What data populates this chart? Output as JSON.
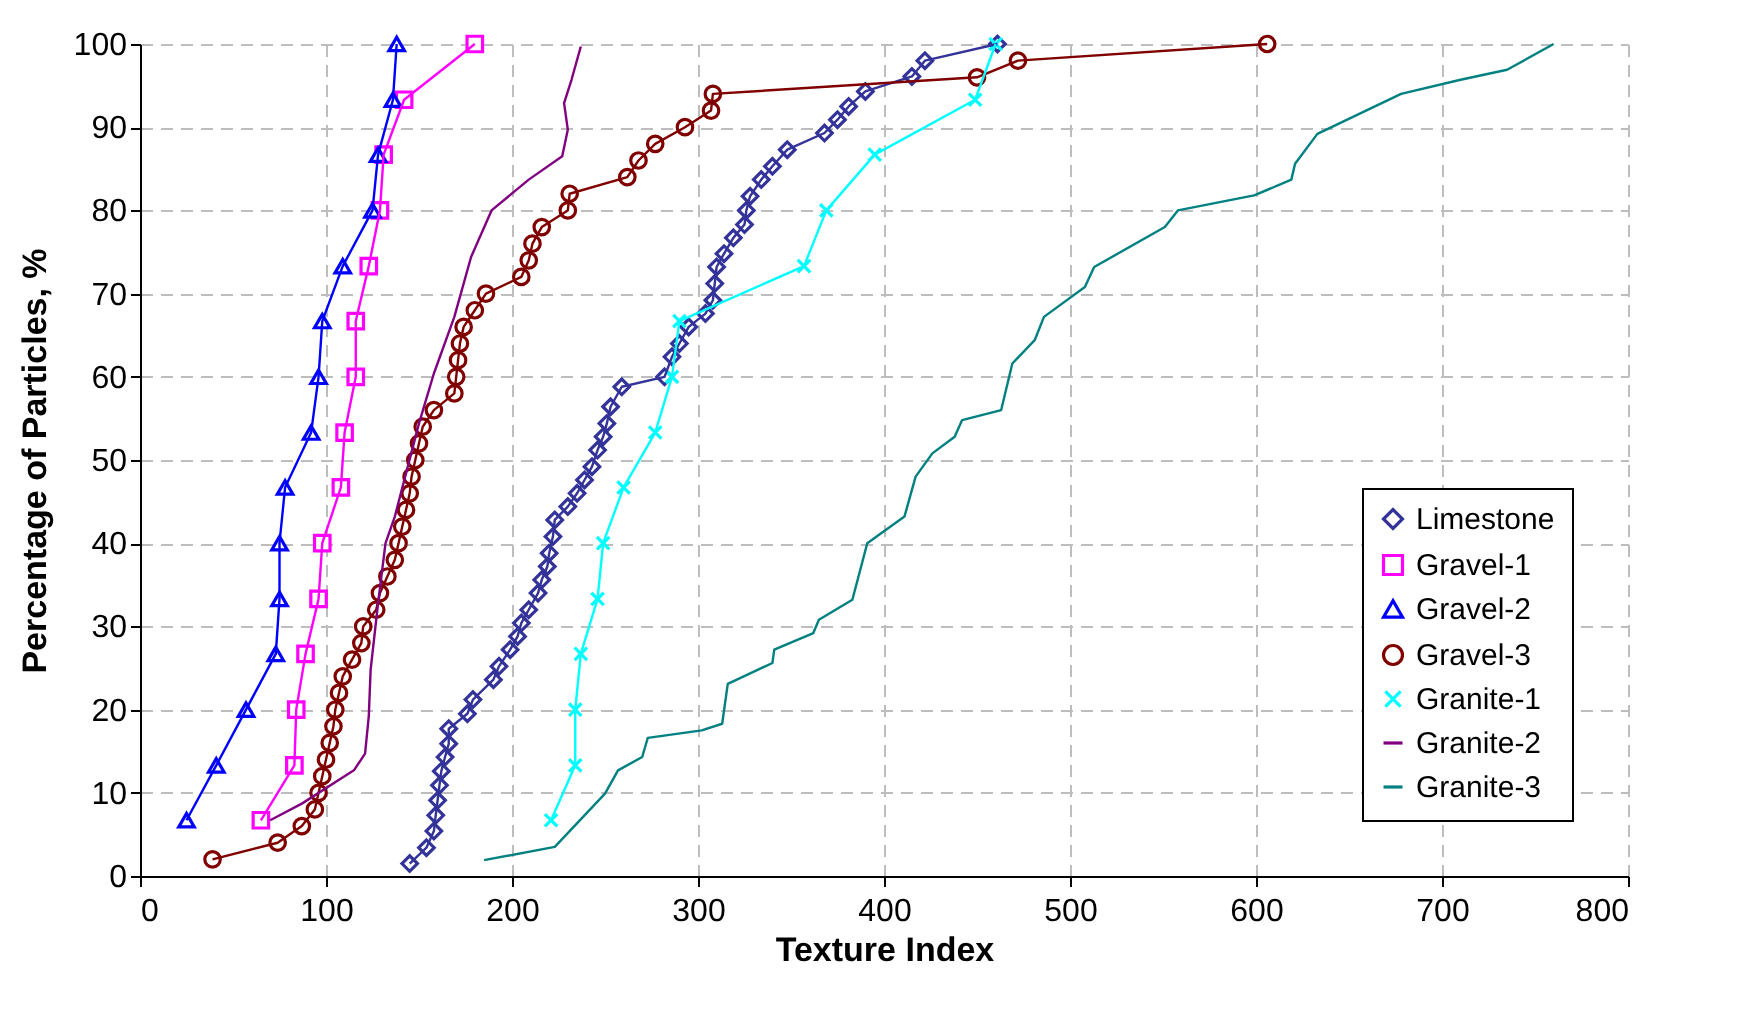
{
  "chart_data": {
    "type": "line",
    "xlabel": "Texture Index",
    "ylabel": "Percentage of Particles, %",
    "xlim": [
      0,
      800
    ],
    "xticks": [
      0,
      100,
      200,
      300,
      400,
      500,
      600,
      700,
      800
    ],
    "ylim": [
      0,
      100
    ],
    "yticks": [
      0,
      10,
      20,
      30,
      40,
      50,
      60,
      70,
      80,
      90,
      100
    ],
    "grid": true,
    "legend": "bottom right",
    "line_style": "solid",
    "series": [
      {
        "name": "Limestone",
        "color": "#333399",
        "marker": "diamond",
        "x": [
          145,
          154,
          158,
          159,
          160,
          161,
          162,
          164,
          166,
          166,
          176,
          179,
          190,
          193,
          199,
          203,
          205,
          209,
          214,
          216,
          219,
          220,
          222,
          223,
          230,
          235,
          239,
          243,
          246,
          249,
          251,
          253,
          259,
          282,
          286,
          290,
          295,
          304,
          308,
          309,
          310,
          314,
          319,
          325,
          326,
          328,
          334,
          340,
          348,
          368,
          375,
          381,
          390,
          415,
          422,
          461
        ],
        "values": [
          1.5,
          3.4,
          5.4,
          7.3,
          9.1,
          10.9,
          12.6,
          14.3,
          15.9,
          17.7,
          19.5,
          21.2,
          23.6,
          25.2,
          27.2,
          28.8,
          30.4,
          32,
          34,
          35.6,
          37.2,
          38.8,
          40.8,
          42.8,
          44.4,
          46,
          47.6,
          49.2,
          51.2,
          52.8,
          54.4,
          56.4,
          58.8,
          60,
          62.4,
          64,
          66,
          67.6,
          69.2,
          71.2,
          73.2,
          74.8,
          76.7,
          78.3,
          80,
          81.7,
          83.7,
          85.3,
          87.3,
          89.3,
          90.9,
          92.5,
          94.3,
          96.1,
          98,
          100
        ]
      },
      {
        "name": "Gravel-1",
        "color": "#ff00ff",
        "marker": "square",
        "x": [
          65,
          83,
          84,
          89,
          96,
          98,
          108,
          110,
          116,
          116,
          123,
          129,
          131,
          142,
          180
        ],
        "values": [
          6.7,
          13.3,
          20,
          26.7,
          33.3,
          40,
          46.7,
          53.3,
          60,
          66.7,
          73.3,
          80,
          86.7,
          93.3,
          100
        ]
      },
      {
        "name": "Gravel-2",
        "color": "#0000ff",
        "marker": "triangle",
        "x": [
          25,
          41,
          57,
          73,
          75,
          75,
          78,
          92,
          96,
          98,
          109,
          125,
          128,
          136,
          138
        ],
        "values": [
          6.7,
          13.3,
          20,
          26.7,
          33.3,
          40,
          46.7,
          53.3,
          60,
          66.7,
          73.3,
          80,
          86.7,
          93.3,
          100
        ]
      },
      {
        "name": "Gravel-3",
        "color": "#800000",
        "marker": "circle",
        "x": [
          39,
          74,
          87,
          94,
          96,
          98,
          100,
          102,
          104,
          105,
          107,
          109,
          114,
          119,
          120,
          127,
          129,
          133,
          137,
          139,
          141,
          143,
          145,
          146,
          148,
          150,
          152,
          158,
          169,
          170,
          171,
          172,
          174,
          180,
          186,
          205,
          209,
          211,
          216,
          230,
          231,
          262,
          268,
          277,
          293,
          307,
          308,
          450,
          472,
          606
        ],
        "values": [
          2,
          4,
          6,
          8,
          10,
          12,
          14,
          16,
          18,
          20,
          22,
          24,
          26,
          28,
          30,
          32,
          34,
          36,
          38,
          40,
          42,
          44,
          46,
          48,
          50,
          52,
          54,
          56,
          58,
          60,
          62,
          64,
          66,
          68,
          70,
          72,
          74,
          76,
          78,
          80,
          82,
          84,
          86,
          88,
          90,
          92,
          94,
          96,
          98,
          100
        ]
      },
      {
        "name": "Granite-1",
        "color": "#00ffff",
        "marker": "cross",
        "x": [
          221,
          234,
          234,
          237,
          246,
          249,
          260,
          277,
          286,
          290,
          357,
          369,
          395,
          449,
          460
        ],
        "values": [
          6.7,
          13.3,
          20,
          26.7,
          33.3,
          40,
          46.7,
          53.3,
          60,
          66.7,
          73.3,
          80,
          86.7,
          93.3,
          100
        ]
      },
      {
        "name": "Granite-2",
        "color": "#800080",
        "marker": "none",
        "x": [
          70,
          87,
          115,
          121,
          123,
          124,
          128,
          132,
          137,
          150,
          158,
          169,
          178,
          189,
          209,
          227,
          230,
          228,
          232,
          237
        ],
        "values": [
          6.7,
          8.7,
          12.7,
          14.7,
          19.2,
          24.8,
          32.8,
          40,
          43.2,
          54.4,
          60.4,
          67.2,
          74.4,
          80,
          83.7,
          86.5,
          89.7,
          92.9,
          95.7,
          99.7
        ]
      },
      {
        "name": "Granite-3",
        "color": "#008080",
        "marker": "none",
        "x": [
          185,
          223,
          250,
          257,
          270,
          273,
          302,
          313,
          316,
          340,
          341,
          362,
          365,
          383,
          391,
          411,
          417,
          426,
          438,
          442,
          463,
          469,
          481,
          486,
          508,
          513,
          551,
          558,
          599,
          619,
          621,
          633,
          678,
          710,
          735,
          760
        ],
        "values": [
          1.9,
          3.5,
          9.9,
          12.7,
          14.3,
          16.6,
          17.5,
          18.3,
          23.1,
          25.6,
          27.2,
          29.2,
          30.8,
          33.2,
          40,
          43.2,
          48,
          50.8,
          52.8,
          54.8,
          56,
          61.6,
          64.4,
          67.2,
          70.8,
          73.2,
          78,
          80,
          81.8,
          83.7,
          85.6,
          89.2,
          94,
          95.7,
          96.9,
          100
        ]
      }
    ]
  }
}
